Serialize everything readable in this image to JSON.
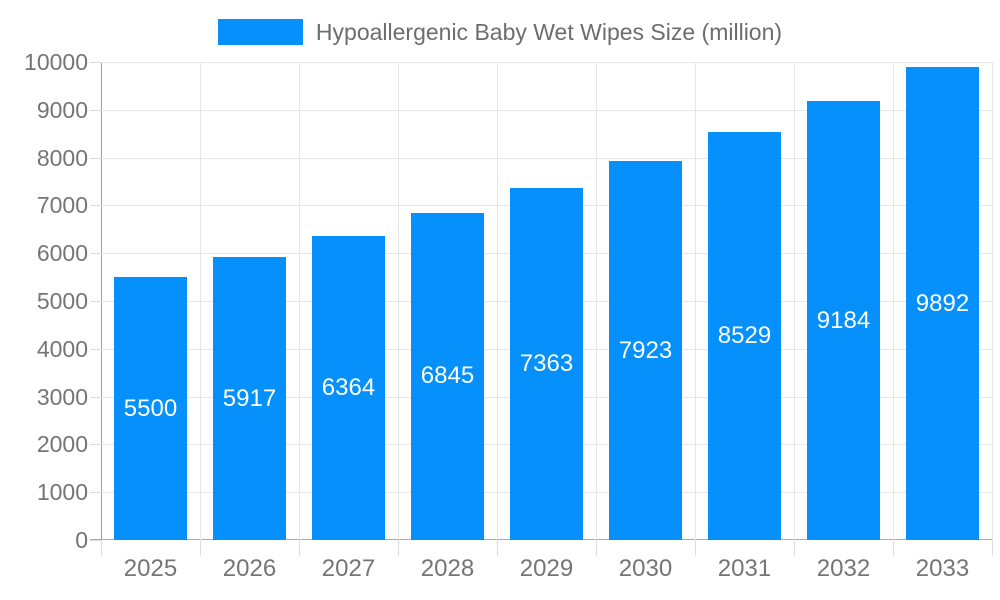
{
  "chart_data": {
    "type": "bar",
    "title": "Hypoallergenic Baby Wet Wipes Size (million)",
    "categories": [
      "2025",
      "2026",
      "2027",
      "2028",
      "2029",
      "2030",
      "2031",
      "2032",
      "2033"
    ],
    "series": [
      {
        "name": "Hypoallergenic Baby Wet Wipes Size (million)",
        "values": [
          5500,
          5917,
          6364,
          6845,
          7363,
          7923,
          8529,
          9184,
          9892
        ]
      }
    ],
    "xlabel": "",
    "ylabel": "",
    "ylim": [
      0,
      10000
    ],
    "y_tick_step": 1000,
    "grid": true,
    "legend_position": "top",
    "value_labels": "inside-center",
    "colors": {
      "bar": "#0590fb",
      "value_label_text": "#ffffff",
      "axis_text": "#757575",
      "legend_text": "#6d6d6d",
      "gridline": "#e7e7e7",
      "axis_line": "#9e9e9e",
      "background": "#ffffff"
    }
  }
}
